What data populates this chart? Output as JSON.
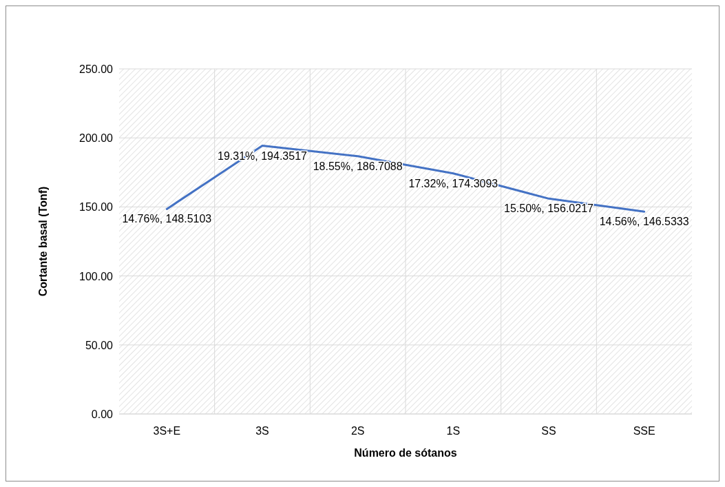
{
  "chart_data": {
    "type": "line",
    "xlabel": "Número de sótanos",
    "ylabel": "Cortante basal (Tonf)",
    "categories": [
      "3S+E",
      "3S",
      "2S",
      "1S",
      "SS",
      "SSE"
    ],
    "series": [
      {
        "color": "#4472c4",
        "values": [
          148.5103,
          194.3517,
          186.7088,
          174.3093,
          156.0217,
          146.5333
        ],
        "value_labels": [
          "14.76%, 148.5103",
          "19.31%, 194.3517",
          "18.55%, 186.7088",
          "17.32%, 174.3093",
          "15.50%, 156.0217",
          "14.56%, 146.5333"
        ]
      }
    ],
    "ylim": [
      0,
      250
    ],
    "yticks": [
      {
        "value": 0,
        "label": "0.00"
      },
      {
        "value": 50,
        "label": "50.00"
      },
      {
        "value": 100,
        "label": "100.00"
      },
      {
        "value": 150,
        "label": "150.00"
      },
      {
        "value": 200,
        "label": "200.00"
      },
      {
        "value": 250,
        "label": "250.00"
      }
    ],
    "grid": true,
    "marker": "none",
    "line_style": "solid"
  }
}
